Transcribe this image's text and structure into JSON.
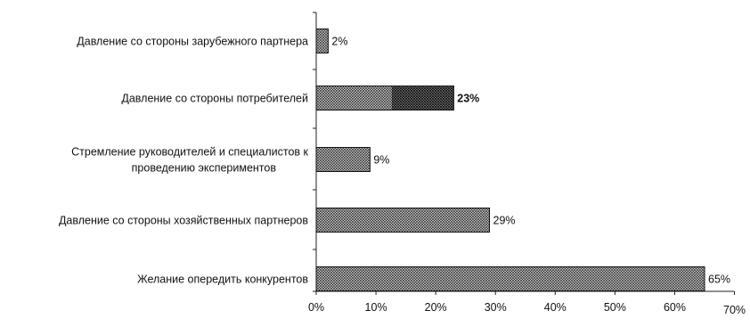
{
  "chart_data": {
    "type": "bar",
    "orientation": "horizontal",
    "categories": [
      [
        "Давление со стороны зарубежного партнера"
      ],
      [
        "Давление со стороны потребителей"
      ],
      [
        "Стремление руководителей и специалистов к",
        "проведению экспериментов"
      ],
      [
        "Давление со стороны хозяйственных партнеров"
      ],
      [
        "Желание опередить конкурентов"
      ]
    ],
    "values": [
      2,
      23,
      9,
      29,
      65
    ],
    "value_labels": [
      "2%",
      "23%",
      "9%",
      "29%",
      "65%"
    ],
    "bold_labels": [
      false,
      true,
      false,
      false,
      false
    ],
    "xlim": [
      0,
      70
    ],
    "xticks": [
      0,
      10,
      20,
      30,
      40,
      50,
      60,
      70
    ],
    "xtick_labels": [
      "0%",
      "10%",
      "20%",
      "30%",
      "40%",
      "50%",
      "60%",
      "70%"
    ],
    "bar_pattern": "crosshatch",
    "bar_stroke": "#111111",
    "grid": false
  }
}
